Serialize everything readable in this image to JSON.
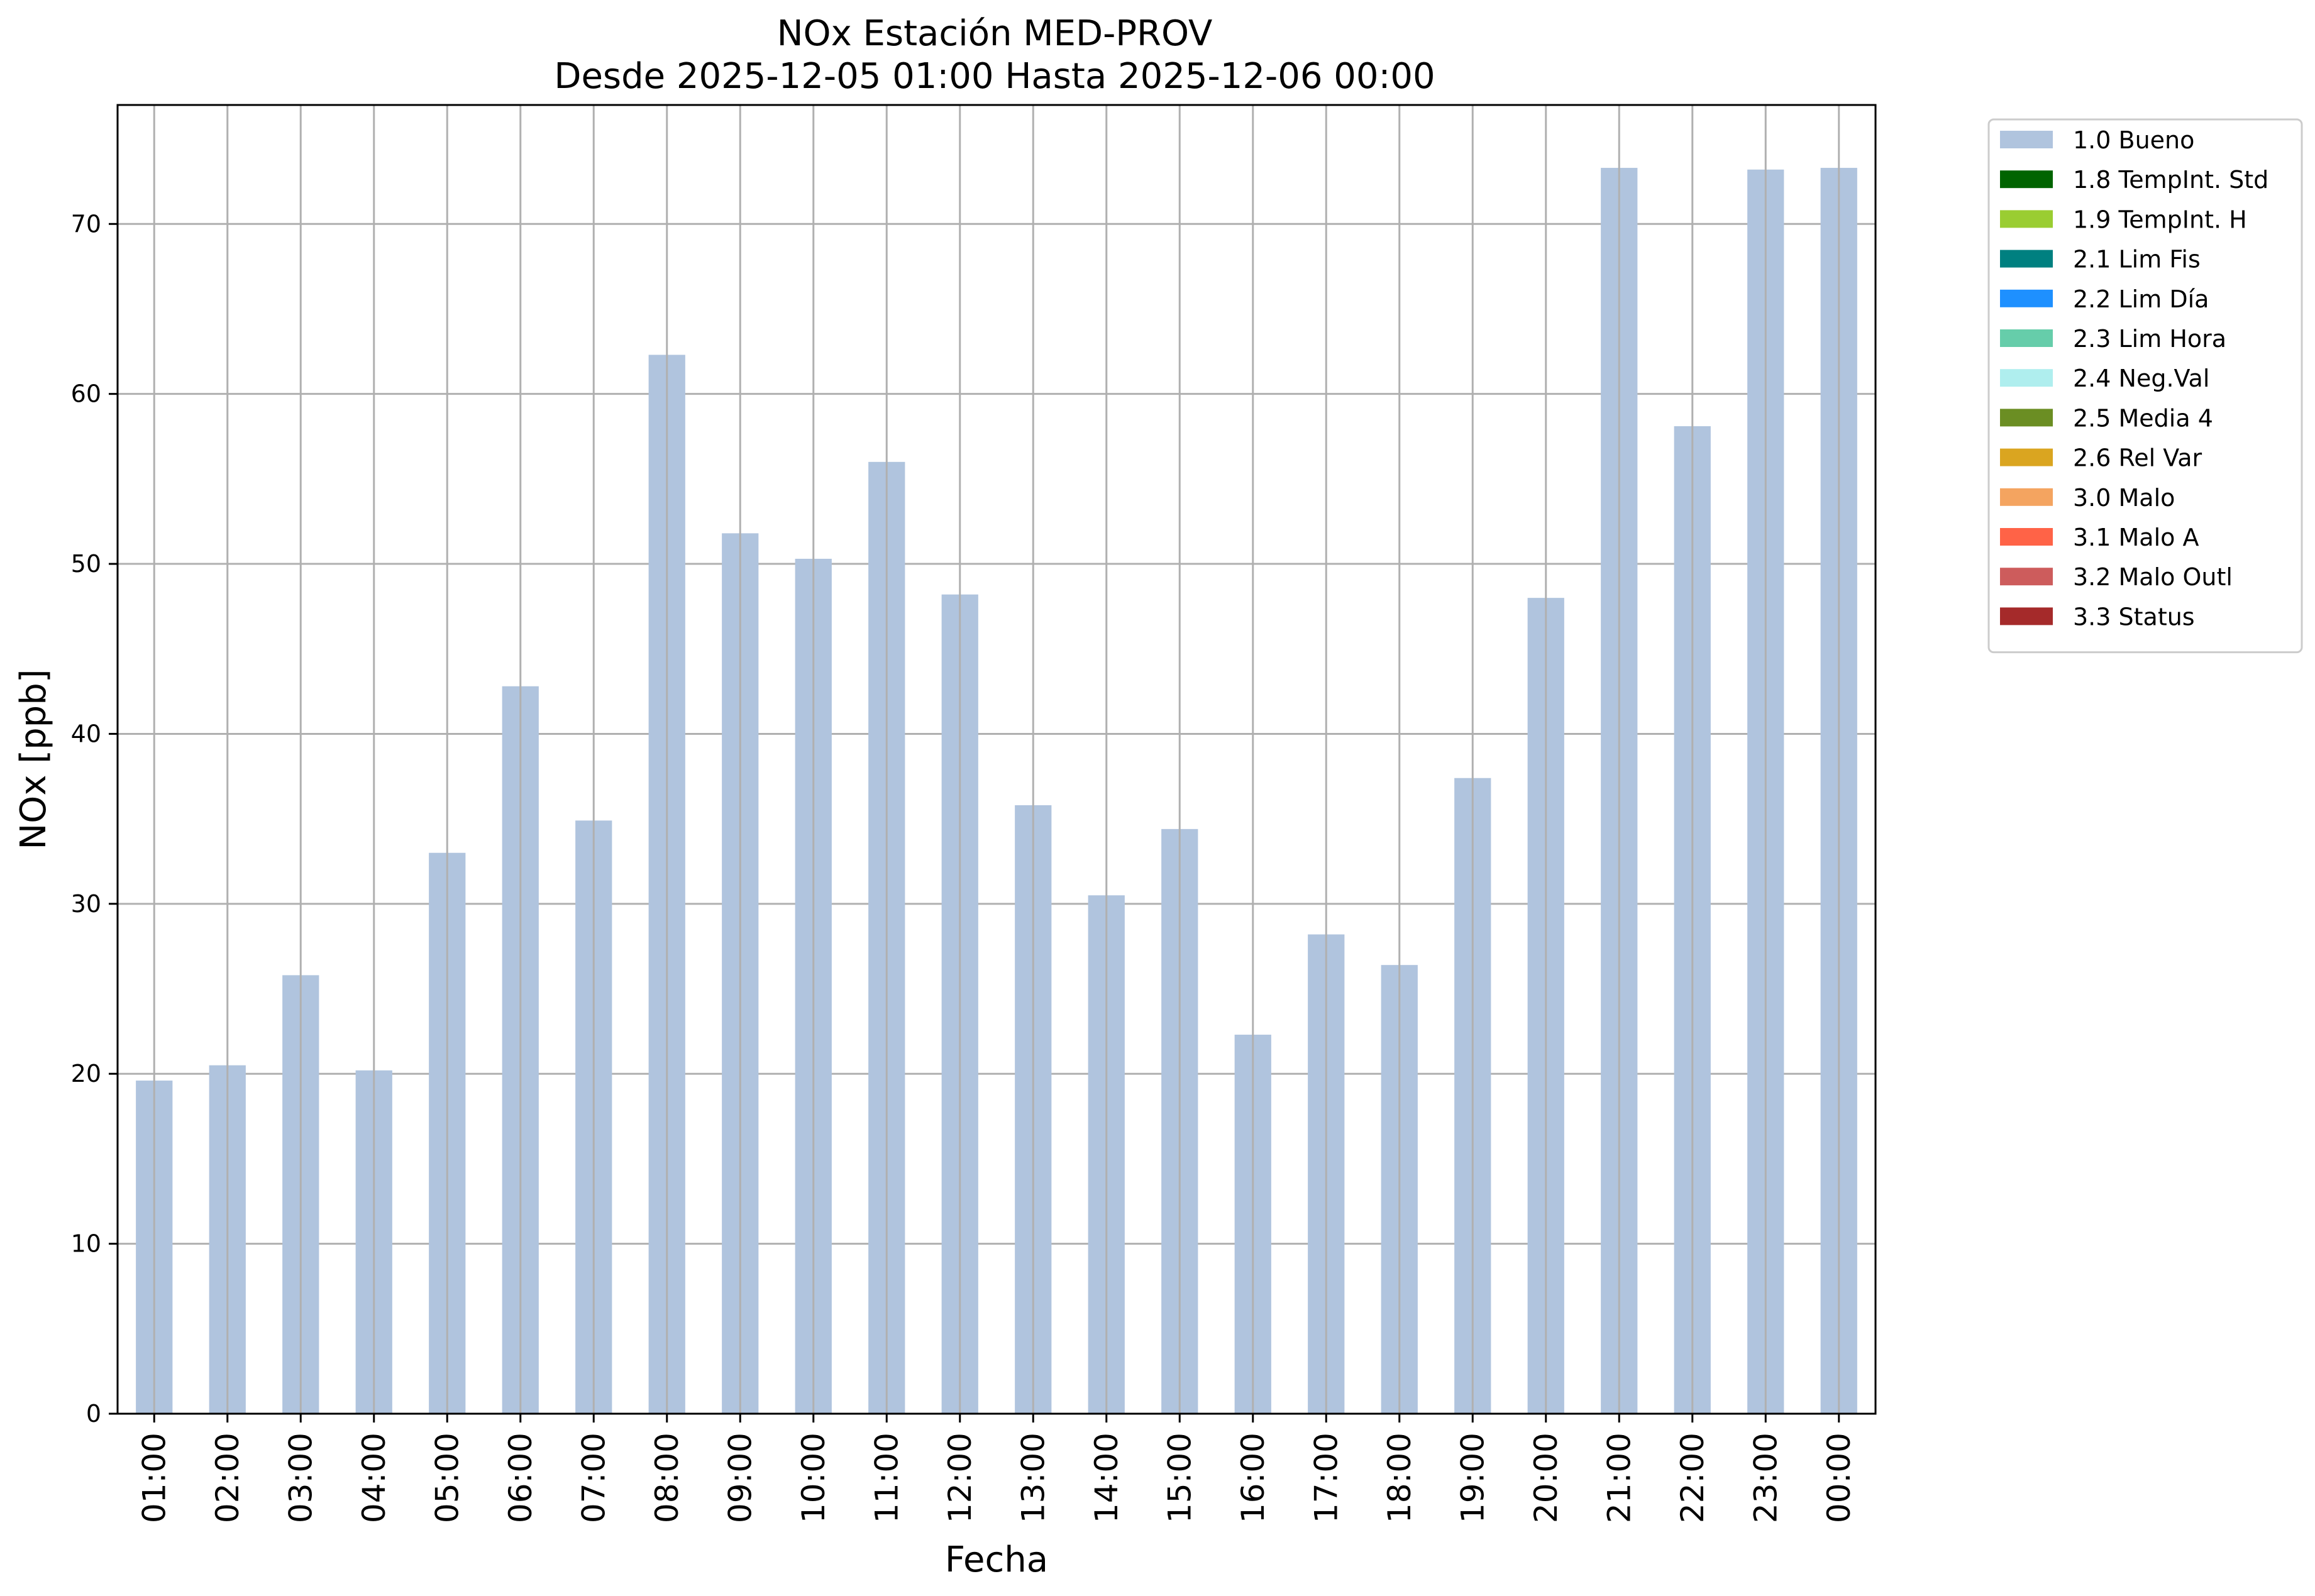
{
  "chart_data": {
    "type": "bar",
    "title_line1": "NOx Estación MED-PROV",
    "title_line2": "Desde 2025-12-05 01:00 Hasta 2025-12-06 00:00",
    "xlabel": "Fecha",
    "ylabel": "NOx [ppb]",
    "ylim": [
      0,
      77
    ],
    "yticks": [
      0,
      10,
      20,
      30,
      40,
      50,
      60,
      70
    ],
    "grid": true,
    "legend_position": "outside-right-top",
    "bar_color": "#b0c4de",
    "categories": [
      "01:00",
      "02:00",
      "03:00",
      "04:00",
      "05:00",
      "06:00",
      "07:00",
      "08:00",
      "09:00",
      "10:00",
      "11:00",
      "12:00",
      "13:00",
      "14:00",
      "15:00",
      "16:00",
      "17:00",
      "18:00",
      "19:00",
      "20:00",
      "21:00",
      "22:00",
      "23:00",
      "00:00"
    ],
    "series": [
      {
        "name": "1.0 Bueno",
        "color": "#b0c4de",
        "values": [
          19.6,
          20.5,
          25.8,
          20.2,
          33.0,
          42.8,
          34.9,
          62.3,
          51.8,
          50.3,
          56.0,
          48.2,
          35.8,
          30.5,
          34.4,
          22.3,
          28.2,
          26.4,
          37.4,
          48.0,
          73.3,
          58.1,
          73.2,
          73.3
        ]
      }
    ],
    "legend": [
      {
        "label": "1.0 Bueno",
        "color": "#b0c4de"
      },
      {
        "label": "1.8 TempInt. Std",
        "color": "#006400"
      },
      {
        "label": "1.9 TempInt. H",
        "color": "#9acd32"
      },
      {
        "label": "2.1 Lim Fis",
        "color": "#008080"
      },
      {
        "label": "2.2 Lim Día",
        "color": "#1e90ff"
      },
      {
        "label": "2.3 Lim Hora",
        "color": "#66cdaa"
      },
      {
        "label": "2.4 Neg.Val",
        "color": "#afeeee"
      },
      {
        "label": "2.5 Media 4",
        "color": "#6b8e23"
      },
      {
        "label": "2.6 Rel Var",
        "color": "#daa520"
      },
      {
        "label": "3.0 Malo",
        "color": "#f4a460"
      },
      {
        "label": "3.1 Malo A",
        "color": "#ff6347"
      },
      {
        "label": "3.2 Malo Outl",
        "color": "#cd5c5c"
      },
      {
        "label": "3.3 Status",
        "color": "#a52a2a"
      }
    ]
  }
}
